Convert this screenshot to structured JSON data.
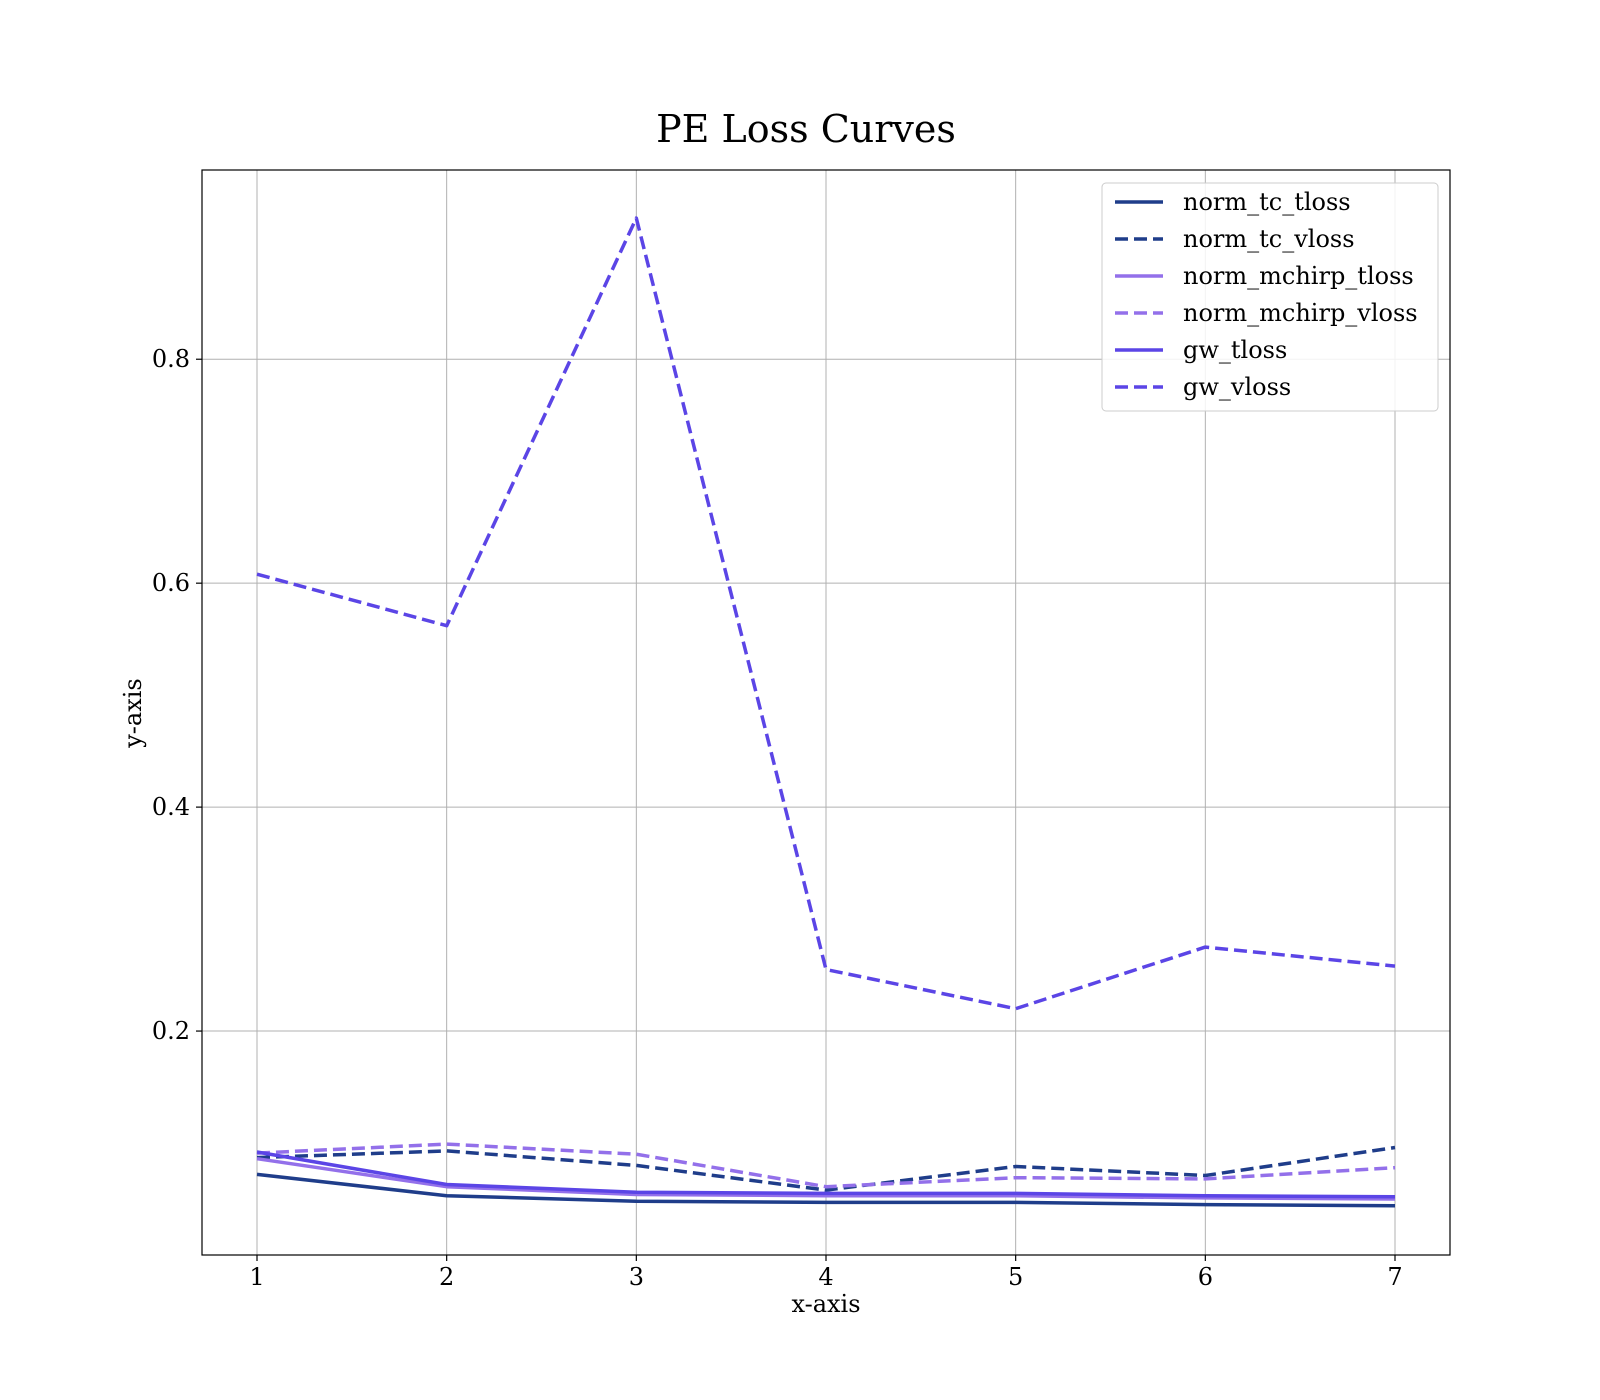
{
  "chart_data": {
    "type": "line",
    "title": "PE Loss Curves",
    "xlabel": "x-axis",
    "ylabel": "y-axis",
    "x": [
      1,
      2,
      3,
      4,
      5,
      6,
      7
    ],
    "xlim": [
      0.71,
      7.29
    ],
    "ylim": [
      0.0,
      0.969
    ],
    "xticks": [
      1,
      2,
      3,
      4,
      5,
      6,
      7
    ],
    "yticks": [
      0.2,
      0.4,
      0.6,
      0.8
    ],
    "grid": true,
    "legend_position": "top-right",
    "series": [
      {
        "name": "norm_tc_tloss",
        "color": "#1f3d8a",
        "style": "solid",
        "values": [
          0.072,
          0.053,
          0.048,
          0.047,
          0.047,
          0.045,
          0.044
        ]
      },
      {
        "name": "norm_tc_vloss",
        "color": "#1f3d8a",
        "style": "dashed",
        "values": [
          0.087,
          0.093,
          0.08,
          0.058,
          0.079,
          0.071,
          0.096
        ]
      },
      {
        "name": "norm_mchirp_tloss",
        "color": "#9370ea",
        "style": "solid",
        "values": [
          0.086,
          0.061,
          0.054,
          0.053,
          0.053,
          0.051,
          0.05
        ]
      },
      {
        "name": "norm_mchirp_vloss",
        "color": "#9370ea",
        "style": "dashed",
        "values": [
          0.091,
          0.099,
          0.09,
          0.061,
          0.069,
          0.068,
          0.078
        ]
      },
      {
        "name": "gw_tloss",
        "color": "#5b45e6",
        "style": "solid",
        "values": [
          0.092,
          0.063,
          0.056,
          0.055,
          0.055,
          0.053,
          0.052
        ]
      },
      {
        "name": "gw_vloss",
        "color": "#5b45e6",
        "style": "dashed",
        "values": [
          0.608,
          0.562,
          0.926,
          0.255,
          0.22,
          0.275,
          0.258
        ]
      }
    ]
  }
}
